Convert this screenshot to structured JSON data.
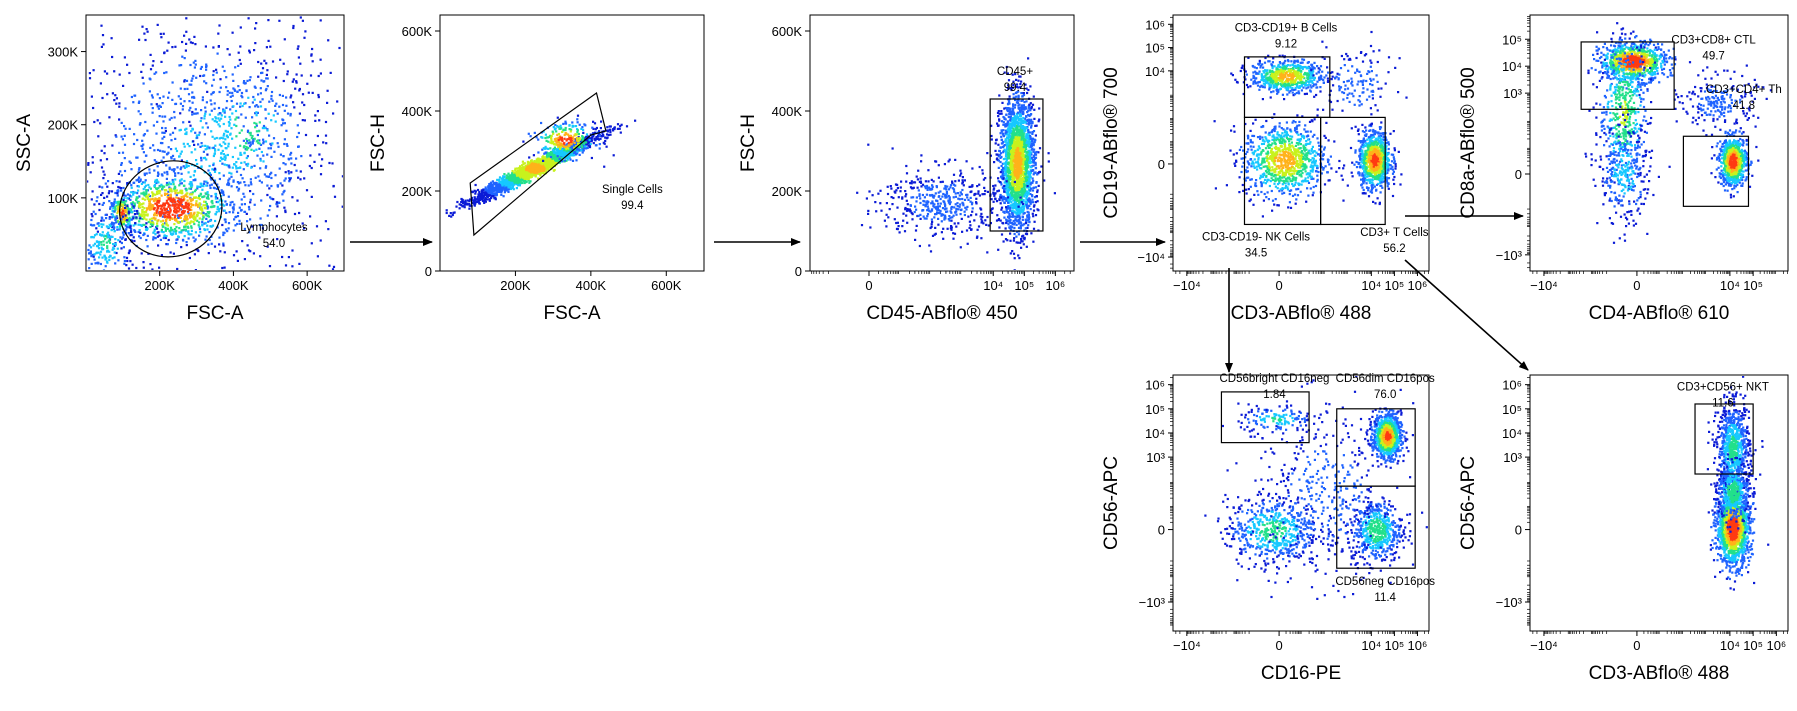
{
  "colors": {
    "density": [
      "#0b1bd6",
      "#1f63ff",
      "#16c8ff",
      "#22e08a",
      "#c8f21d",
      "#ffb21a",
      "#ff3a12",
      "#d8000a"
    ]
  },
  "chart_data": [
    {
      "id": "p1",
      "type": "density-scatter",
      "xlabel": "FSC-A",
      "ylabel": "SSC-A",
      "xscale": "linear",
      "yscale": "linear",
      "xlim": [
        0,
        700000
      ],
      "ylim": [
        0,
        350000
      ],
      "xticks": [
        {
          "v": 200000,
          "t": "200K"
        },
        {
          "v": 400000,
          "t": "400K"
        },
        {
          "v": 600000,
          "t": "600K"
        }
      ],
      "yticks": [
        {
          "v": 100000,
          "t": "100K"
        },
        {
          "v": 200000,
          "t": "200K"
        },
        {
          "v": 300000,
          "t": "300K"
        }
      ],
      "clusters": [
        {
          "x": 330000,
          "y": 170000,
          "sx": 190000,
          "sy": 100000,
          "w": 0.45,
          "c": 0.12
        },
        {
          "x": 430000,
          "y": 190000,
          "sx": 80000,
          "sy": 45000,
          "w": 0.08,
          "c": 0.3
        },
        {
          "x": 230000,
          "y": 88000,
          "sx": 80000,
          "sy": 22000,
          "w": 0.32,
          "c": 0.82
        },
        {
          "x": 95000,
          "y": 80000,
          "sx": 16000,
          "sy": 14000,
          "w": 0.06,
          "c": 0.7
        },
        {
          "x": 50000,
          "y": 40000,
          "sx": 40000,
          "sy": 30000,
          "w": 0.09,
          "c": 0.25
        }
      ],
      "gates": [
        {
          "shape": "ellipse",
          "label": "Lymphocytes",
          "value": "54.0",
          "cx": 230000,
          "cy": 85000,
          "rx": 140000,
          "ry": 65000,
          "rot": -20,
          "lx": 510000,
          "ly": 55000
        }
      ]
    },
    {
      "id": "p2",
      "type": "density-scatter",
      "xlabel": "FSC-A",
      "ylabel": "FSC-H",
      "xscale": "linear",
      "yscale": "linear",
      "xlim": [
        0,
        700000
      ],
      "ylim": [
        0,
        640000
      ],
      "xticks": [
        {
          "v": 200000,
          "t": "200K"
        },
        {
          "v": 400000,
          "t": "400K"
        },
        {
          "v": 600000,
          "t": "600K"
        }
      ],
      "yticks": [
        {
          "v": 0,
          "t": "0"
        },
        {
          "v": 200000,
          "t": "200K"
        },
        {
          "v": 400000,
          "t": "400K"
        },
        {
          "v": 600000,
          "t": "600K"
        }
      ],
      "clusters": [
        {
          "x": 250000,
          "y": 260000,
          "sx": 80000,
          "sy": 40000,
          "w": 0.9,
          "c": 0.55,
          "corr": 0.97
        },
        {
          "x": 330000,
          "y": 330000,
          "sx": 40000,
          "sy": 22000,
          "w": 0.1,
          "c": 0.75
        }
      ],
      "gates": [
        {
          "shape": "polygon",
          "label": "Single Cells",
          "value": "99.4",
          "points": [
            [
              90000,
              90000
            ],
            [
              400000,
              340000
            ],
            [
              440000,
              350000
            ],
            [
              415000,
              445000
            ],
            [
              80000,
              220000
            ]
          ],
          "lx": 510000,
          "ly": 195000
        }
      ]
    },
    {
      "id": "p3",
      "type": "density-scatter",
      "xlabel": "CD45-ABflo® 450",
      "ylabel": "FSC-H",
      "xscale": "logicle",
      "yscale": "linear",
      "xlim": [
        -1.9,
        6.6
      ],
      "ylim": [
        0,
        640000
      ],
      "xticks": [
        {
          "v": 0,
          "t": "0"
        },
        {
          "v": 4,
          "t": "10⁴"
        },
        {
          "v": 5,
          "t": "10⁵"
        },
        {
          "v": 6,
          "t": "10⁶"
        }
      ],
      "yticks": [
        {
          "v": 0,
          "t": "0"
        },
        {
          "v": 200000,
          "t": "200K"
        },
        {
          "v": 400000,
          "t": "400K"
        },
        {
          "v": 600000,
          "t": "600K"
        }
      ],
      "clusters": [
        {
          "x": 4.75,
          "y": 270000,
          "sx": 0.28,
          "sy": 80000,
          "w": 0.82,
          "c": 0.6
        },
        {
          "x": 2.3,
          "y": 175000,
          "sx": 1.0,
          "sy": 45000,
          "w": 0.18,
          "c": 0.05
        }
      ],
      "gates": [
        {
          "shape": "rect",
          "label": "CD45+",
          "value": "99.4",
          "x0": 3.9,
          "x1": 5.6,
          "y0": 100000,
          "y1": 430000,
          "lx": 4.7,
          "ly": 490000
        }
      ]
    },
    {
      "id": "p4",
      "type": "density-scatter",
      "xlabel": "CD3-ABflo® 488",
      "ylabel": "CD19-ABflo® 700",
      "xscale": "logicle",
      "yscale": "logicle",
      "xlim": [
        -4.6,
        6.5
      ],
      "ylim": [
        -4.6,
        6.4
      ],
      "xticks": [
        {
          "v": -4,
          "t": "−10⁴"
        },
        {
          "v": 0,
          "t": "0"
        },
        {
          "v": 4,
          "t": "10⁴"
        },
        {
          "v": 5,
          "t": "10⁵"
        },
        {
          "v": 6,
          "t": "10⁶"
        }
      ],
      "yticks": [
        {
          "v": -4,
          "t": "−10⁴"
        },
        {
          "v": 0,
          "t": "0"
        },
        {
          "v": 4,
          "t": "10⁴"
        },
        {
          "v": 5,
          "t": "10⁵"
        },
        {
          "v": 6,
          "t": "10⁶"
        }
      ],
      "clusters": [
        {
          "x": 0.3,
          "y": 3.8,
          "sx": 0.8,
          "sy": 0.35,
          "w": 0.25,
          "c": 0.6
        },
        {
          "x": 0.2,
          "y": 0.2,
          "sx": 0.9,
          "sy": 0.8,
          "w": 0.35,
          "c": 0.6
        },
        {
          "x": 4.1,
          "y": 0.2,
          "sx": 0.35,
          "sy": 0.6,
          "w": 0.35,
          "c": 0.75
        },
        {
          "x": 3.3,
          "y": 3.5,
          "sx": 0.8,
          "sy": 0.8,
          "w": 0.05,
          "c": 0.08
        }
      ],
      "gates": [
        {
          "shape": "rect",
          "label": "CD3-CD19+ B Cells",
          "value": "9.12",
          "x0": -1.5,
          "x1": 2.2,
          "y0": 2.0,
          "y1": 4.6,
          "lx": 0.3,
          "ly": 5.7
        },
        {
          "shape": "rect",
          "label": "CD3-CD19- NK Cells",
          "value": "34.5",
          "x0": -1.5,
          "x1": 1.8,
          "y0": -2.6,
          "y1": 2.0,
          "lx": -1.0,
          "ly": -3.3
        },
        {
          "shape": "rect",
          "label": "CD3+ T Cells",
          "value": "56.2",
          "x0": 1.8,
          "x1": 4.6,
          "y0": -2.6,
          "y1": 2.0,
          "lx": 5.0,
          "ly": -3.1
        }
      ]
    },
    {
      "id": "p5",
      "type": "density-scatter",
      "xlabel": "CD4-ABflo® 610",
      "ylabel": "CD8a-ABflo® 500",
      "xscale": "logicle",
      "yscale": "logicle",
      "xlim": [
        -4.6,
        6.5
      ],
      "ylim": [
        -3.6,
        5.9
      ],
      "xticks": [
        {
          "v": -4,
          "t": "−10⁴"
        },
        {
          "v": 0,
          "t": "0"
        },
        {
          "v": 4,
          "t": "10⁴"
        },
        {
          "v": 5,
          "t": "10⁵"
        }
      ],
      "yticks": [
        {
          "v": -3,
          "t": "−10³"
        },
        {
          "v": 0,
          "t": "0"
        },
        {
          "v": 3,
          "t": "10³"
        },
        {
          "v": 4,
          "t": "10⁴"
        },
        {
          "v": 5,
          "t": "10⁵"
        }
      ],
      "clusters": [
        {
          "x": -0.2,
          "y": 4.2,
          "sx": 0.7,
          "sy": 0.35,
          "w": 0.32,
          "c": 0.85
        },
        {
          "x": -0.6,
          "y": 2.3,
          "sx": 0.55,
          "sy": 1.4,
          "w": 0.2,
          "c": 0.4
        },
        {
          "x": -0.6,
          "y": 0.0,
          "sx": 0.55,
          "sy": 0.9,
          "w": 0.1,
          "c": 0.2
        },
        {
          "x": 4.1,
          "y": 0.5,
          "sx": 0.3,
          "sy": 0.45,
          "w": 0.3,
          "c": 0.8
        },
        {
          "x": 3.5,
          "y": 2.7,
          "sx": 0.8,
          "sy": 0.5,
          "w": 0.08,
          "c": 0.08
        }
      ],
      "gates": [
        {
          "shape": "rect",
          "label": "CD3+CD8+ CTL",
          "value": "49.7",
          "x0": -2.4,
          "x1": 1.6,
          "y0": 2.4,
          "y1": 4.9,
          "lx": 3.3,
          "ly": 4.85
        },
        {
          "shape": "rect",
          "label": "CD3+CD4+ Th",
          "value": "41.8",
          "x0": 2.0,
          "x1": 4.8,
          "y0": -1.2,
          "y1": 1.4,
          "lx": 4.6,
          "ly": 3.0
        }
      ]
    },
    {
      "id": "p6",
      "type": "density-scatter",
      "xlabel": "CD16-PE",
      "ylabel": "CD56-APC",
      "xscale": "logicle",
      "yscale": "logicle",
      "xlim": [
        -4.6,
        6.5
      ],
      "ylim": [
        -4.2,
        6.4
      ],
      "xticks": [
        {
          "v": -4,
          "t": "−10⁴"
        },
        {
          "v": 0,
          "t": "0"
        },
        {
          "v": 4,
          "t": "10⁴"
        },
        {
          "v": 5,
          "t": "10⁵"
        },
        {
          "v": 6,
          "t": "10⁶"
        }
      ],
      "yticks": [
        {
          "v": -3,
          "t": "−10³"
        },
        {
          "v": 0,
          "t": "0"
        },
        {
          "v": 3,
          "t": "10³"
        },
        {
          "v": 4,
          "t": "10⁴"
        },
        {
          "v": 5,
          "t": "10⁵"
        },
        {
          "v": 6,
          "t": "10⁶"
        }
      ],
      "clusters": [
        {
          "x": 4.65,
          "y": 3.9,
          "sx": 0.3,
          "sy": 0.45,
          "w": 0.38,
          "c": 0.75
        },
        {
          "x": 4.2,
          "y": 0.0,
          "sx": 0.55,
          "sy": 0.65,
          "w": 0.2,
          "c": 0.35
        },
        {
          "x": -0.3,
          "y": 0.0,
          "sx": 1.0,
          "sy": 0.7,
          "w": 0.22,
          "c": 0.3
        },
        {
          "x": -0.2,
          "y": 4.6,
          "sx": 0.8,
          "sy": 0.3,
          "w": 0.05,
          "c": 0.25
        },
        {
          "x": 2.0,
          "y": 1.5,
          "sx": 1.6,
          "sy": 1.8,
          "w": 0.15,
          "c": 0.04
        }
      ],
      "gates": [
        {
          "shape": "rect",
          "label": "CD56bright CD16neg",
          "value": "1.84",
          "x0": -2.5,
          "x1": 1.3,
          "y0": 3.6,
          "y1": 5.7,
          "lx": -0.2,
          "ly": 6.1
        },
        {
          "shape": "rect",
          "label": "CD56dim CD16pos",
          "value": "76.0",
          "x0": 2.5,
          "x1": 5.9,
          "y0": 1.8,
          "y1": 5.0,
          "lx": 4.6,
          "ly": 6.1
        },
        {
          "shape": "rect",
          "label": "CD56neg CD16pos",
          "value": "11.4",
          "x0": 2.5,
          "x1": 5.9,
          "y0": -1.6,
          "y1": 1.8,
          "lx": 4.6,
          "ly": -2.3
        }
      ]
    },
    {
      "id": "p7",
      "type": "density-scatter",
      "xlabel": "CD3-ABflo® 488",
      "ylabel": "CD56-APC",
      "xscale": "logicle",
      "yscale": "logicle",
      "xlim": [
        -4.6,
        6.5
      ],
      "ylim": [
        -4.2,
        6.4
      ],
      "xticks": [
        {
          "v": -4,
          "t": "−10⁴"
        },
        {
          "v": 0,
          "t": "0"
        },
        {
          "v": 4,
          "t": "10⁴"
        },
        {
          "v": 5,
          "t": "10⁵"
        },
        {
          "v": 6,
          "t": "10⁶"
        }
      ],
      "yticks": [
        {
          "v": -3,
          "t": "−10³"
        },
        {
          "v": 0,
          "t": "0"
        },
        {
          "v": 3,
          "t": "10³"
        },
        {
          "v": 4,
          "t": "10⁴"
        },
        {
          "v": 5,
          "t": "10⁵"
        },
        {
          "v": 6,
          "t": "10⁶"
        }
      ],
      "clusters": [
        {
          "x": 4.1,
          "y": 0.1,
          "sx": 0.35,
          "sy": 0.75,
          "w": 0.55,
          "c": 0.85
        },
        {
          "x": 4.1,
          "y": 3.4,
          "sx": 0.35,
          "sy": 0.9,
          "w": 0.3,
          "c": 0.3
        },
        {
          "x": 4.1,
          "y": 1.6,
          "sx": 0.35,
          "sy": 0.6,
          "w": 0.15,
          "c": 0.35
        }
      ],
      "gates": [
        {
          "shape": "rect",
          "label": "CD3+CD56+ NKT",
          "value": "11.6",
          "x0": 2.5,
          "x1": 5.0,
          "y0": 2.3,
          "y1": 5.2,
          "lx": 3.7,
          "ly": 5.75
        }
      ]
    }
  ]
}
